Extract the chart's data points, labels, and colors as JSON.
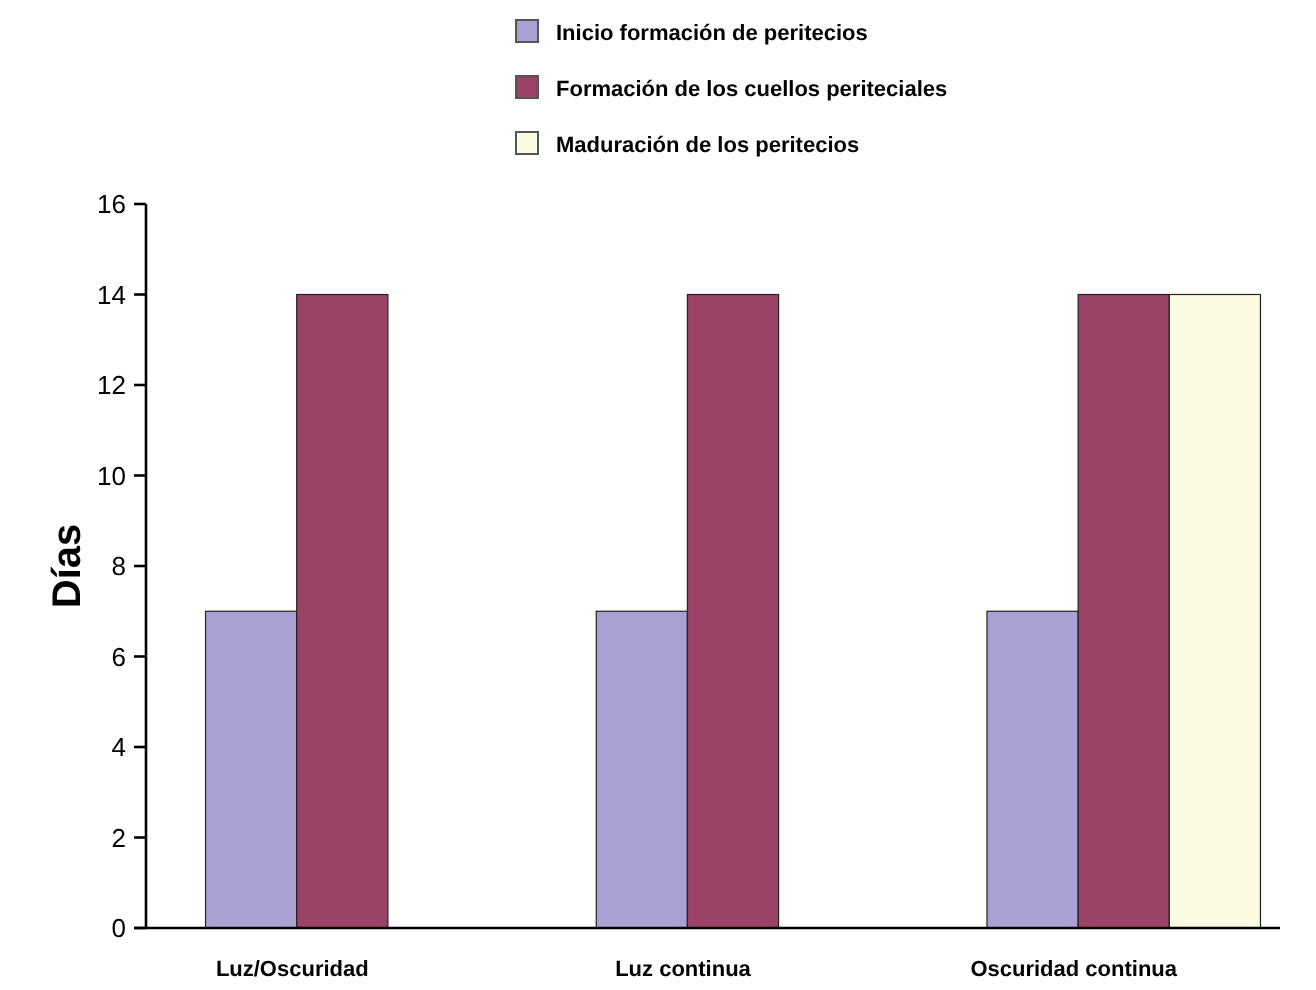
{
  "chart_data": {
    "type": "bar",
    "ylabel": "Días",
    "categories": [
      "Luz/Oscuridad",
      "Luz continua",
      "Oscuridad continua"
    ],
    "series": [
      {
        "name": "Inicio formación de peritecios",
        "color": "#aba0d4",
        "values": [
          7,
          7,
          7
        ]
      },
      {
        "name": "Formación de los cuellos periteciales",
        "color": "#9b4366",
        "values": [
          14,
          14,
          14
        ]
      },
      {
        "name": "Maduración de los peritecios",
        "color": "#fbfbe2",
        "values": [
          0,
          0,
          14
        ]
      }
    ],
    "ylim": [
      0,
      16
    ],
    "yticks": [
      0,
      2,
      4,
      6,
      8,
      10,
      12,
      14,
      16
    ],
    "legend": "top right",
    "grid": false
  }
}
